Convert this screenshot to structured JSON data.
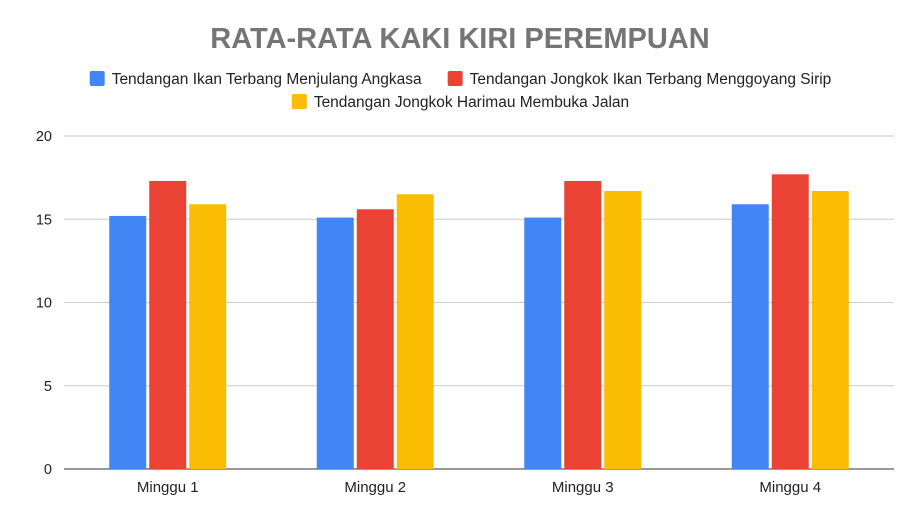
{
  "chart_data": {
    "type": "bar",
    "title": "RATA-RATA KAKI KIRI PEREMPUAN",
    "categories": [
      "Minggu 1",
      "Minggu 2",
      "Minggu 3",
      "Minggu 4"
    ],
    "series": [
      {
        "name": "Tendangan Ikan Terbang Menjulang Angkasa",
        "color": "#4285F4",
        "values": [
          15.2,
          15.1,
          15.1,
          15.9
        ]
      },
      {
        "name": "Tendangan Jongkok Ikan Terbang Menggoyang Sirip",
        "color": "#EA4335",
        "values": [
          17.3,
          15.6,
          17.3,
          17.7
        ]
      },
      {
        "name": "Tendangan Jongkok Harimau Membuka Jalan",
        "color": "#FBBC04",
        "values": [
          15.9,
          16.5,
          16.7,
          16.7
        ]
      }
    ],
    "ylim": [
      0,
      20
    ],
    "yticks": [
      0,
      5,
      10,
      15,
      20
    ],
    "grid": true,
    "legend": "top"
  }
}
